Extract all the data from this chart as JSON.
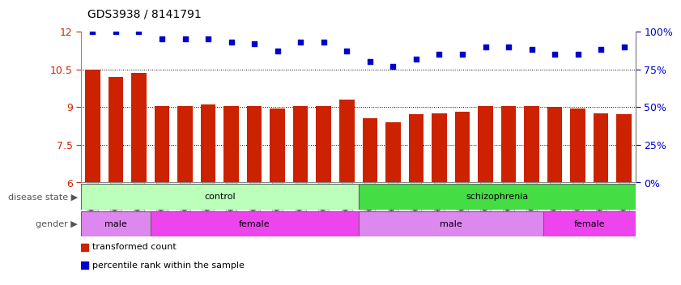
{
  "title": "GDS3938 / 8141791",
  "samples": [
    "GSM630785",
    "GSM630786",
    "GSM630787",
    "GSM630788",
    "GSM630789",
    "GSM630790",
    "GSM630791",
    "GSM630792",
    "GSM630793",
    "GSM630794",
    "GSM630795",
    "GSM630796",
    "GSM630797",
    "GSM630798",
    "GSM630799",
    "GSM630803",
    "GSM630804",
    "GSM630805",
    "GSM630806",
    "GSM630807",
    "GSM630808",
    "GSM630800",
    "GSM630801",
    "GSM630802"
  ],
  "bar_values": [
    10.5,
    10.2,
    10.35,
    9.05,
    9.05,
    9.1,
    9.05,
    9.05,
    8.95,
    9.05,
    9.05,
    9.3,
    8.55,
    8.4,
    8.7,
    8.75,
    8.8,
    9.05,
    9.05,
    9.05,
    9.0,
    8.95,
    8.75,
    8.7
  ],
  "dot_values": [
    100,
    100,
    100,
    95,
    95,
    95,
    93,
    92,
    87,
    93,
    93,
    87,
    80,
    77,
    82,
    85,
    85,
    90,
    90,
    88,
    85,
    85,
    88,
    90
  ],
  "ylim_left": [
    6,
    12
  ],
  "ylim_right": [
    0,
    100
  ],
  "yticks_left": [
    6,
    7.5,
    9,
    10.5,
    12
  ],
  "yticks_right": [
    0,
    25,
    50,
    75,
    100
  ],
  "bar_color": "#cc2200",
  "dot_color": "#0000cc",
  "disease_state_groups": [
    {
      "label": "control",
      "start": 0,
      "end": 11,
      "color": "#bbffbb"
    },
    {
      "label": "schizophrenia",
      "start": 12,
      "end": 23,
      "color": "#44dd44"
    }
  ],
  "gender_groups": [
    {
      "label": "male",
      "start": 0,
      "end": 2,
      "color": "#dd88ee"
    },
    {
      "label": "female",
      "start": 3,
      "end": 11,
      "color": "#ee44ee"
    },
    {
      "label": "male",
      "start": 12,
      "end": 19,
      "color": "#dd88ee"
    },
    {
      "label": "female",
      "start": 20,
      "end": 23,
      "color": "#ee44ee"
    }
  ],
  "legend_items": [
    {
      "label": "transformed count",
      "color": "#cc2200"
    },
    {
      "label": "percentile rank within the sample",
      "color": "#0000cc"
    }
  ],
  "tick_label_bg": "#dddddd"
}
